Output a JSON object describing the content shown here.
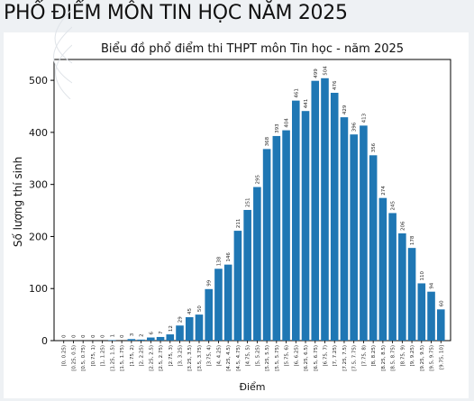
{
  "page": {
    "heading": "PHỔ ĐIỂM MÔN TIN HỌC NĂM 2025"
  },
  "chart_data": {
    "type": "bar",
    "title": "Biểu đồ phổ điểm thi THPT môn Tin học - năm 2025",
    "xlabel": "Điểm",
    "ylabel": "Số lượng thí sinh",
    "ylim": [
      0,
      540
    ],
    "yticks": [
      0,
      100,
      200,
      300,
      400,
      500
    ],
    "bar_color": "#1f77b4",
    "categories": [
      "[0, 0.25)",
      "[0.25, 0.5)",
      "[0.5, 0.75)",
      "[0.75, 1)",
      "[1, 1.25)",
      "[1.25, 1.5)",
      "[1.5, 1.75)",
      "[1.75, 2)",
      "[2, 2.25)",
      "[2.25, 2.5)",
      "[2.5, 2.75)",
      "[2.75, 3)",
      "[3, 3.25)",
      "[3.25, 3.5)",
      "[3.5, 3.75)",
      "[3.75, 4)",
      "[4, 4.25)",
      "[4.25, 4.5)",
      "[4.5, 4.75)",
      "[4.75, 5)",
      "[5, 5.25)",
      "[5.25, 5.5)",
      "[5.5, 5.75)",
      "[5.75, 6)",
      "[6, 6.25)",
      "[6.25, 6.5)",
      "[6.5, 6.75)",
      "[6.75, 7)",
      "[7, 7.25)",
      "[7.25, 7.5)",
      "[7.5, 7.75)",
      "[7.75, 8)",
      "[8, 8.25)",
      "[8.25, 8.5)",
      "[8.5, 8.75)",
      "[8.75, 9)",
      "[9, 9.25)",
      "[9.25, 9.5)",
      "[9.5, 9.75)",
      "[9.75, 10]"
    ],
    "values": [
      0,
      0,
      0,
      0,
      0,
      1,
      0,
      3,
      2,
      6,
      7,
      12,
      29,
      45,
      50,
      99,
      138,
      146,
      211,
      251,
      295,
      368,
      393,
      404,
      461,
      441,
      499,
      504,
      476,
      429,
      396,
      413,
      356,
      274,
      245,
      206,
      178,
      110,
      94,
      60
    ],
    "legend": "none",
    "grid": false
  }
}
